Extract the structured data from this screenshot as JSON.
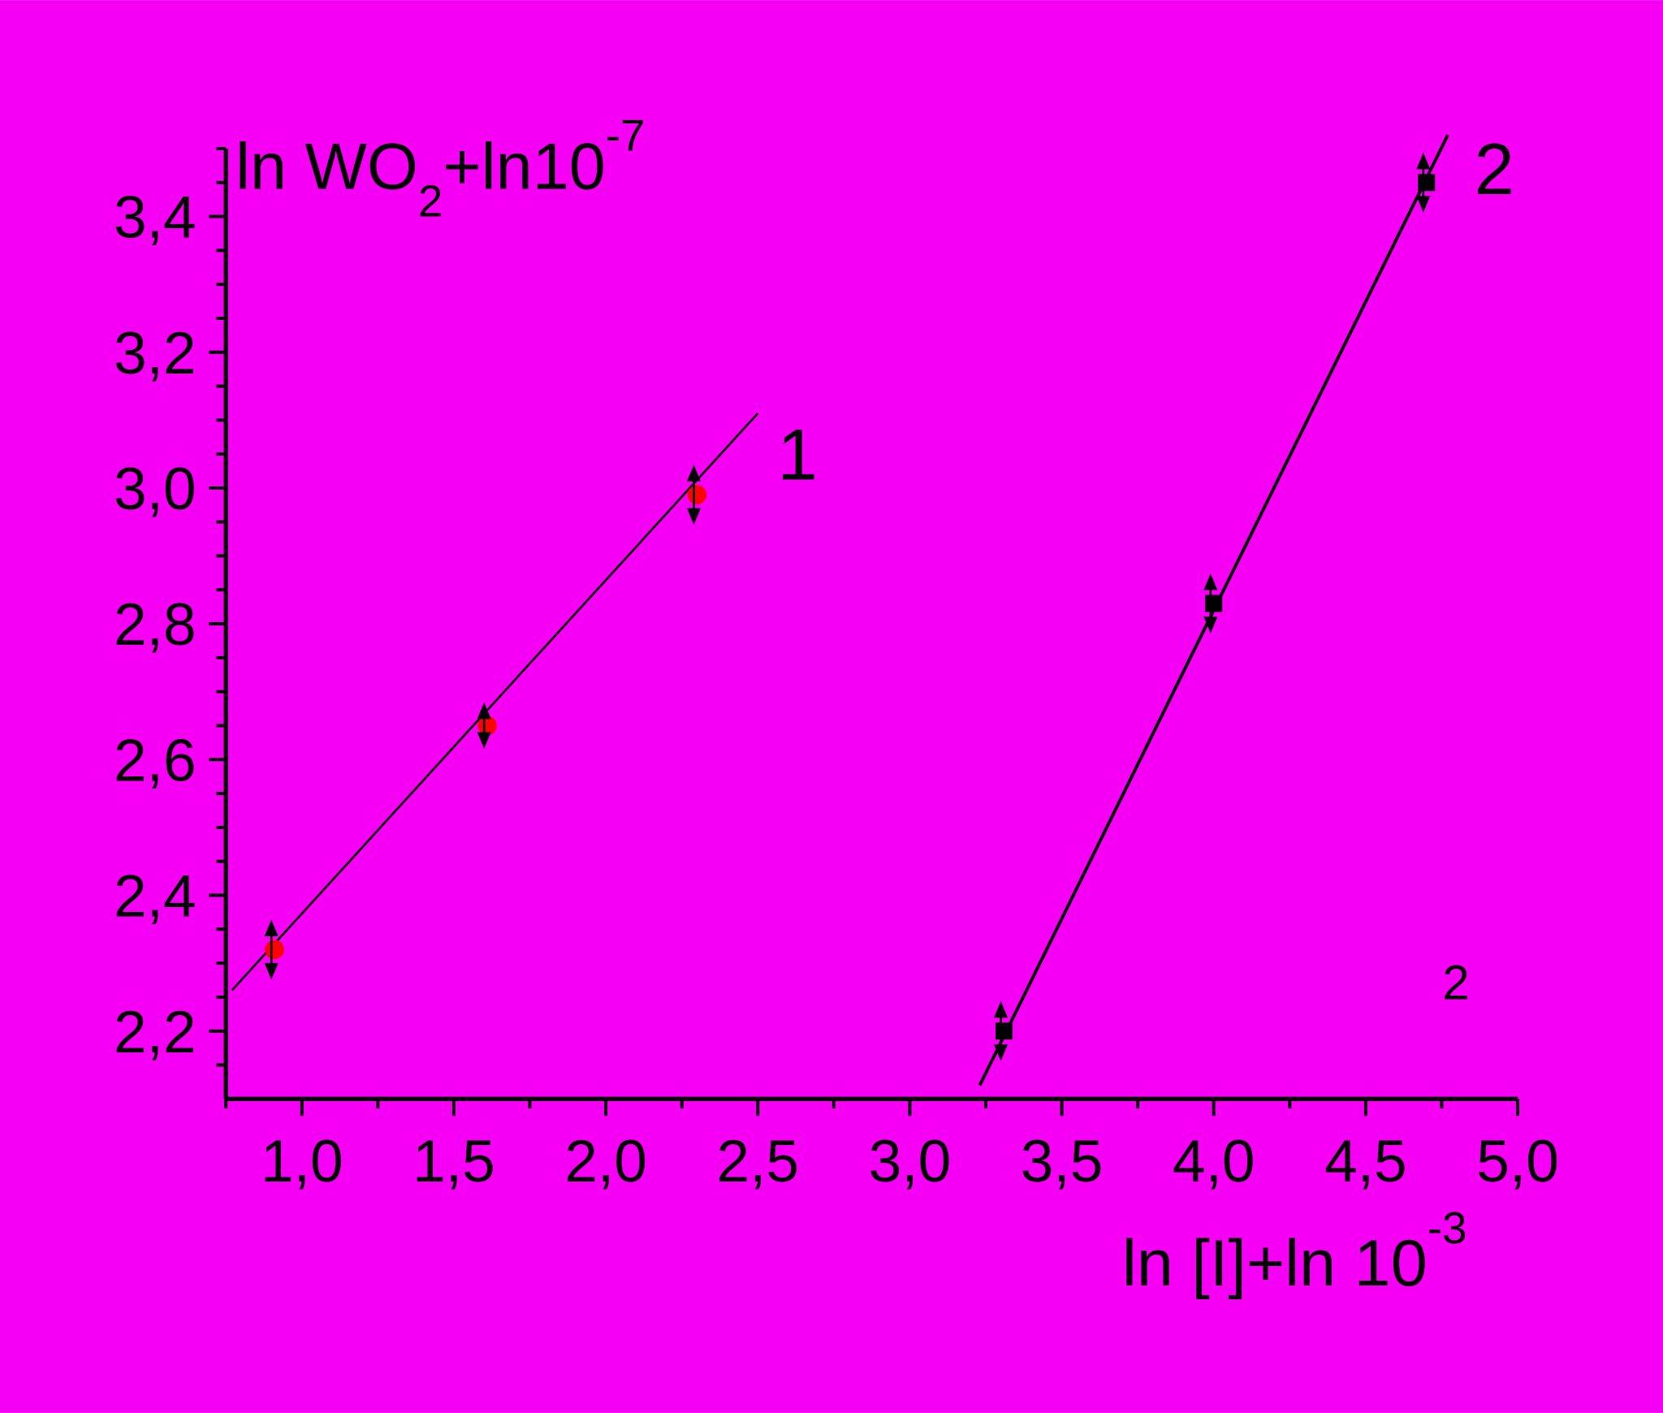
{
  "chart_data": {
    "type": "scatter",
    "x_label": [
      "ln [I]+ln 10",
      "-3"
    ],
    "y_label": [
      "ln WO",
      "2",
      "+ln10",
      "-7"
    ],
    "xlim": [
      0.75,
      5.0
    ],
    "ylim": [
      2.1,
      3.5
    ],
    "xticks": [
      {
        "value": 1.0,
        "label": "1,0"
      },
      {
        "value": 1.5,
        "label": "1,5"
      },
      {
        "value": 2.0,
        "label": "2,0"
      },
      {
        "value": 2.5,
        "label": "2,5"
      },
      {
        "value": 3.0,
        "label": "3,0"
      },
      {
        "value": 3.5,
        "label": "3,5"
      },
      {
        "value": 4.0,
        "label": "4,0"
      },
      {
        "value": 4.5,
        "label": "4,5"
      },
      {
        "value": 5.0,
        "label": "5,0"
      }
    ],
    "yticks": [
      {
        "value": 2.2,
        "label": "2,2"
      },
      {
        "value": 2.4,
        "label": "2,4"
      },
      {
        "value": 2.6,
        "label": "2,6"
      },
      {
        "value": 2.8,
        "label": "2,8"
      },
      {
        "value": 3.0,
        "label": "3,0"
      },
      {
        "value": 3.2,
        "label": "3,2"
      },
      {
        "value": 3.4,
        "label": "3,4"
      }
    ],
    "xminorticks": [
      0.75,
      1.25,
      1.75,
      2.25,
      2.75,
      3.25,
      3.75,
      4.25,
      4.75
    ],
    "yminorticks": [
      2.15,
      2.25,
      2.3,
      2.35,
      2.45,
      2.5,
      2.55,
      2.65,
      2.7,
      2.75,
      2.85,
      2.9,
      2.95,
      3.05,
      3.1,
      3.15,
      3.25,
      3.3,
      3.35,
      3.45,
      3.5
    ],
    "background": "#f500f5",
    "series": [
      {
        "name": "1",
        "color": "#ff0000",
        "marker": "circle",
        "x": [
          0.91,
          1.61,
          2.3
        ],
        "values": [
          2.32,
          2.65,
          2.99
        ],
        "errors": [
          0.04,
          0.03,
          0.04
        ],
        "fit": {
          "x": [
            0.77,
            2.5
          ],
          "y": [
            2.26,
            3.11
          ]
        }
      },
      {
        "name": "2",
        "color": "#000000",
        "marker": "square",
        "x": [
          3.31,
          4.0,
          4.7
        ],
        "values": [
          2.2,
          2.83,
          3.45
        ],
        "errors": [
          0.04,
          0.04,
          0.04
        ],
        "fit": {
          "x": [
            3.23,
            4.77
          ],
          "y": [
            2.12,
            3.52
          ]
        }
      }
    ],
    "annotation": "2"
  }
}
